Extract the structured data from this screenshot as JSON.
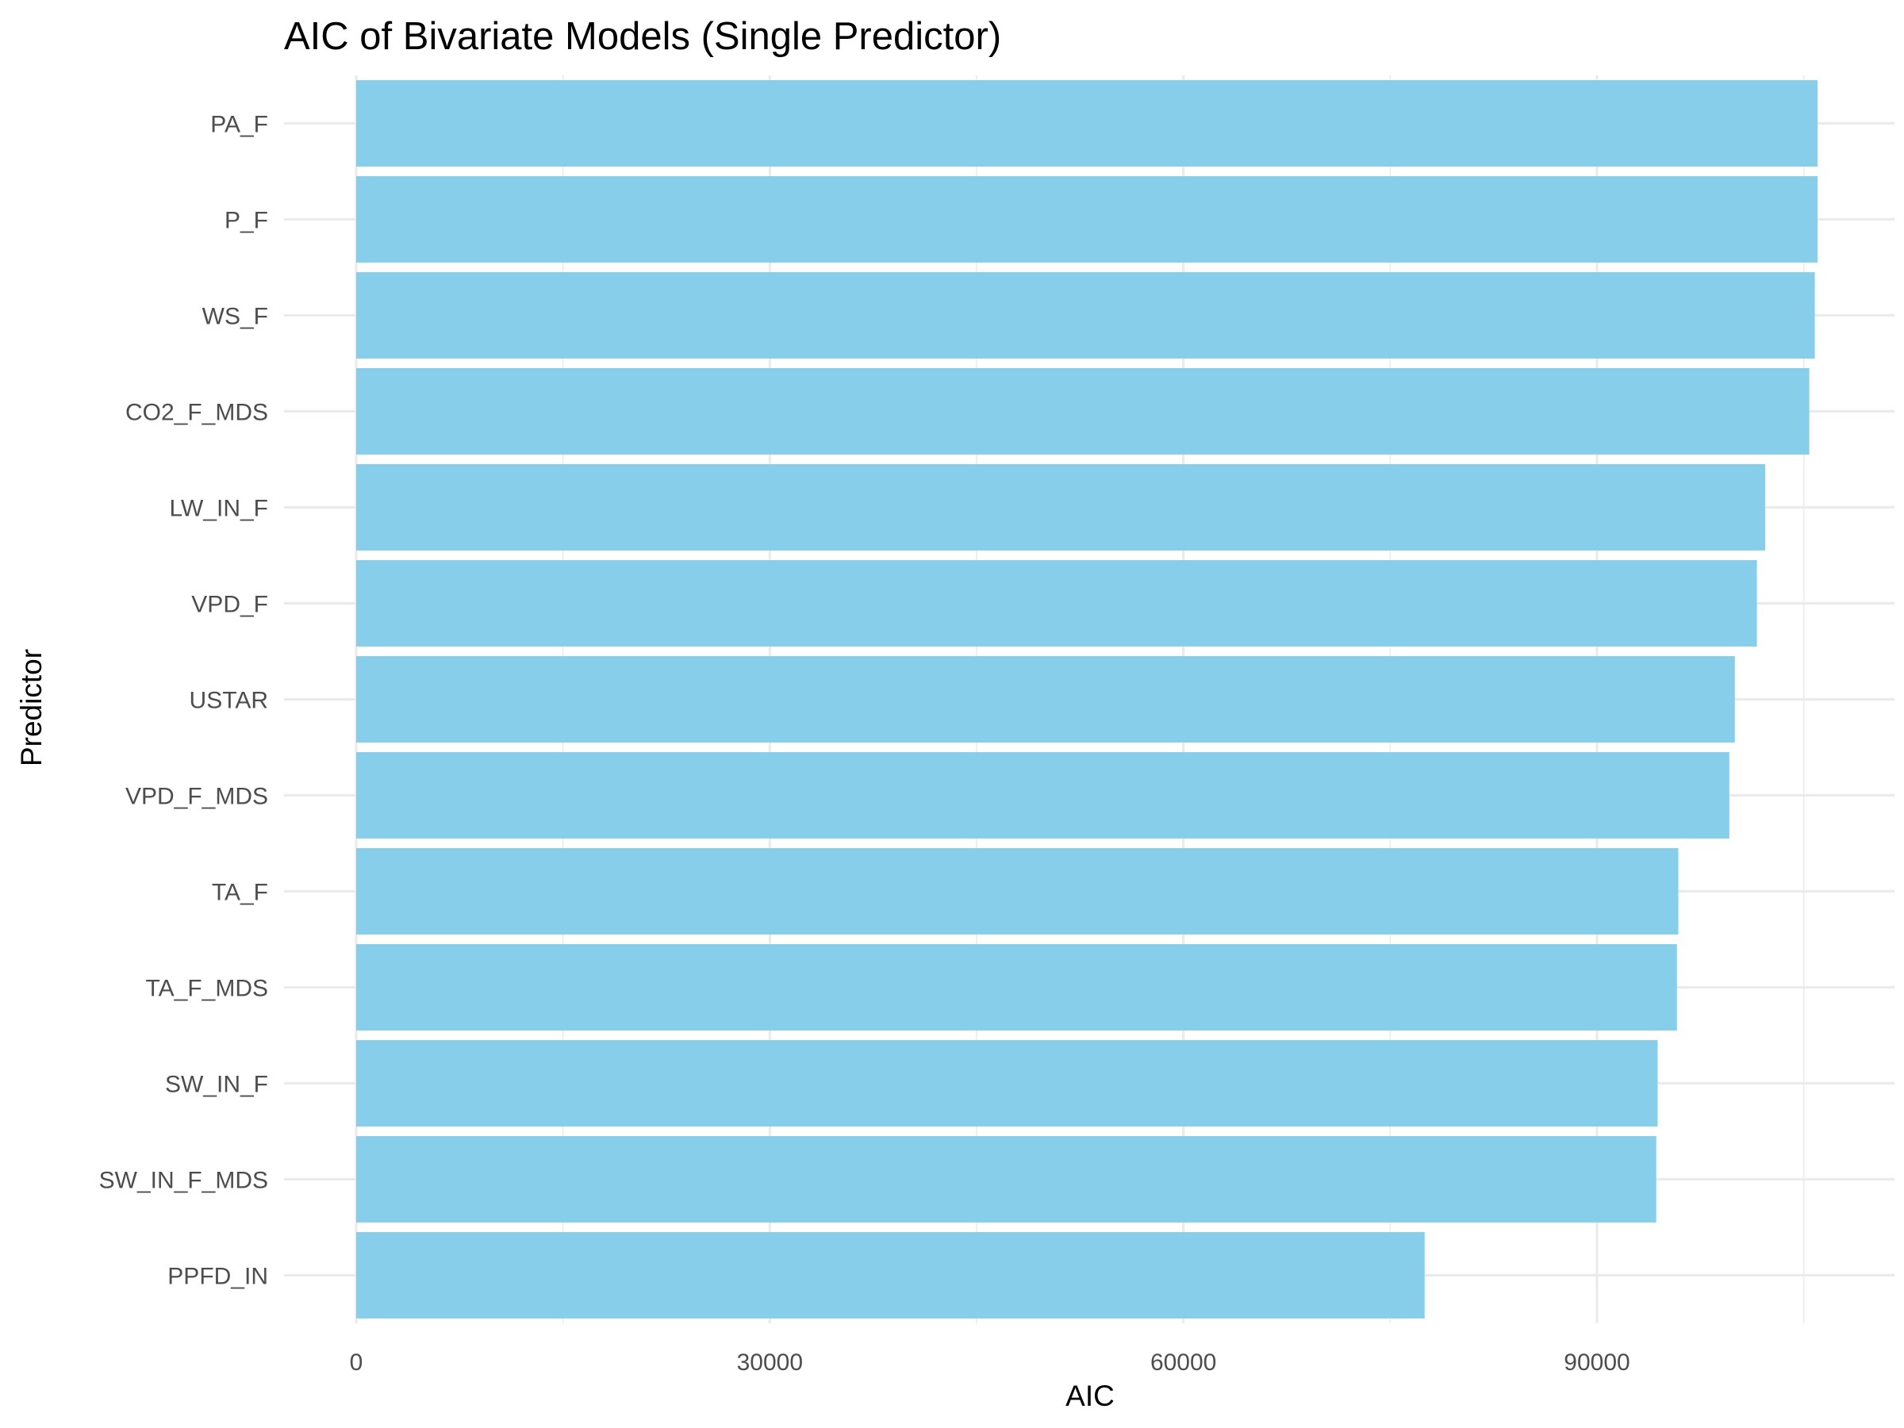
{
  "chart_data": {
    "type": "bar",
    "orientation": "horizontal",
    "title": "AIC of Bivariate Models (Single Predictor)",
    "xlabel": "AIC",
    "ylabel": "Predictor",
    "categories": [
      "PA_F",
      "P_F",
      "WS_F",
      "CO2_F_MDS",
      "LW_IN_F",
      "VPD_F",
      "USTAR",
      "VPD_F_MDS",
      "TA_F",
      "TA_F_MDS",
      "SW_IN_F",
      "SW_IN_F_MDS",
      "PPFD_IN"
    ],
    "values": [
      106000,
      106000,
      105800,
      105400,
      102200,
      101600,
      100000,
      99600,
      95900,
      95800,
      94400,
      94300,
      77500
    ],
    "xlim": [
      0,
      111000
    ],
    "x_ticks": [
      "0",
      "30000",
      "60000",
      "90000"
    ],
    "x_tick_values": [
      0,
      30000,
      60000,
      90000
    ],
    "x_minor_grid_values": [
      15000,
      45000,
      75000,
      105000
    ],
    "bar_color": "#87CEEB",
    "grid_color": "#EBEBEB",
    "grid": true,
    "legend": "none"
  }
}
